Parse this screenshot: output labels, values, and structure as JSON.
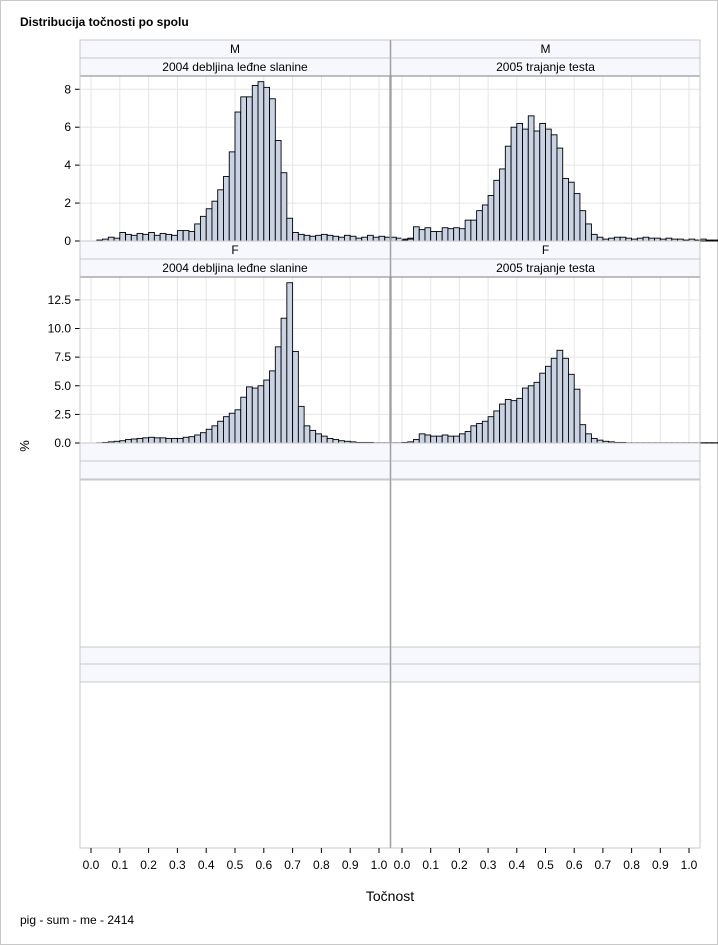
{
  "title": "Distribucija točnosti po spolu",
  "footer": "pig - sum - me - 2414",
  "chart_data": [
    {
      "type": "histogram",
      "panel": "M / 2004 debljina leđne slanine",
      "row_header": "M",
      "col_header": "2004 debljina leđne slanine",
      "bin_start": 0.0,
      "bin_width": 0.02,
      "values": [
        0,
        0.05,
        0.1,
        0.2,
        0.15,
        0.45,
        0.35,
        0.3,
        0.4,
        0.35,
        0.45,
        0.3,
        0.4,
        0.35,
        0.3,
        0.55,
        0.55,
        0.5,
        0.9,
        1.3,
        1.7,
        2.1,
        2.7,
        3.4,
        4.7,
        6.8,
        7.6,
        7.6,
        8.2,
        8.4,
        8.1,
        7.5,
        5.3,
        3.6,
        1.2,
        0.45,
        0.35,
        0.3,
        0.25,
        0.3,
        0.35,
        0.3,
        0.25,
        0.2,
        0.3,
        0.25,
        0.15,
        0.2,
        0.3,
        0.2,
        0.25,
        0.2,
        0.2,
        0.15,
        0.1,
        0.15,
        0.1,
        0.1,
        0.05,
        0.05
      ],
      "ylim": [
        0,
        8.7
      ],
      "yticks": [
        0,
        2,
        4,
        6,
        8
      ]
    },
    {
      "type": "histogram",
      "panel": "M / 2005 trajanje testa",
      "row_header": "M",
      "col_header": "2005 trajanje testa",
      "bin_start": 0.0,
      "bin_width": 0.02,
      "values": [
        0.05,
        0.1,
        0.75,
        0.6,
        0.7,
        0.5,
        0.5,
        0.7,
        0.65,
        0.7,
        0.65,
        1.1,
        1.1,
        1.6,
        1.9,
        2.4,
        3.2,
        3.8,
        5.0,
        6.0,
        6.2,
        5.9,
        6.6,
        5.8,
        6.2,
        5.9,
        5.6,
        4.9,
        3.3,
        3.1,
        2.5,
        1.6,
        0.9,
        0.35,
        0.2,
        0.1,
        0.15,
        0.2,
        0.2,
        0.15,
        0.1,
        0.15,
        0.2,
        0.15,
        0.15,
        0.1,
        0.15,
        0.1,
        0.1,
        0.05,
        0.1,
        0.05,
        0.1,
        0.05,
        0.05,
        0.05,
        0.05,
        0.02,
        0.02,
        0.02
      ],
      "ylim": [
        0,
        8.7
      ],
      "yticks": [
        0,
        2,
        4,
        6,
        8
      ]
    },
    {
      "type": "histogram",
      "panel": "F / 2004 debljina leđne slanine",
      "row_header": "F",
      "col_header": "2004 debljina leđne slanine",
      "bin_start": 0.0,
      "bin_width": 0.02,
      "values": [
        0,
        0.02,
        0.05,
        0.1,
        0.15,
        0.2,
        0.3,
        0.35,
        0.4,
        0.45,
        0.5,
        0.45,
        0.45,
        0.4,
        0.4,
        0.4,
        0.5,
        0.55,
        0.7,
        0.9,
        1.2,
        1.5,
        1.9,
        2.3,
        2.6,
        2.9,
        4.0,
        4.9,
        4.8,
        5.0,
        5.5,
        6.3,
        8.4,
        10.9,
        14.0,
        8.0,
        3.2,
        1.5,
        1.1,
        0.8,
        0.6,
        0.4,
        0.3,
        0.2,
        0.15,
        0.1,
        0.05,
        0.05,
        0.05,
        0.02,
        0.02,
        0.02,
        0.02,
        0.02,
        0.02,
        0.02,
        0.02,
        0.02,
        0.02,
        0.02
      ],
      "ylim": [
        0,
        14.5
      ],
      "yticks": [
        0.0,
        2.5,
        5.0,
        7.5,
        10.0,
        12.5
      ]
    },
    {
      "type": "histogram",
      "panel": "F / 2005 trajanje testa",
      "row_header": "F",
      "col_header": "2005 trajanje testa",
      "bin_start": 0.0,
      "bin_width": 0.02,
      "values": [
        0.05,
        0.1,
        0.3,
        0.8,
        0.7,
        0.6,
        0.6,
        0.7,
        0.6,
        0.6,
        0.8,
        1.0,
        1.5,
        1.7,
        1.9,
        2.3,
        2.8,
        3.4,
        3.8,
        3.7,
        3.9,
        4.8,
        5.0,
        5.3,
        6.1,
        6.7,
        7.4,
        8.1,
        7.4,
        6.0,
        4.7,
        1.6,
        0.8,
        0.4,
        0.25,
        0.15,
        0.1,
        0.05,
        0.05,
        0.02,
        0.02,
        0.02,
        0.02,
        0.02,
        0.02,
        0.02,
        0.02,
        0.02,
        0.02,
        0.02,
        0.02,
        0.02,
        0.02,
        0.02,
        0.02,
        0.02,
        0.02,
        0.02,
        0.02,
        0.02
      ],
      "ylim": [
        0,
        14.5
      ],
      "yticks": [
        0.0,
        2.5,
        5.0,
        7.5,
        10.0,
        12.5
      ]
    }
  ],
  "x_axis": {
    "label": "Točnost",
    "xlim": [
      0.0,
      1.0
    ],
    "ticks": [
      "0.0",
      "0.1",
      "0.2",
      "0.3",
      "0.4",
      "0.5",
      "0.6",
      "0.7",
      "0.8",
      "0.9",
      "1.0"
    ]
  },
  "y_axis_label": "%",
  "colors": {
    "bar_fill": "#c9d3e3",
    "bar_stroke": "#000000",
    "header_fill": "#f7f8fd",
    "grid": "#e6e6e6",
    "border": "#808080"
  }
}
